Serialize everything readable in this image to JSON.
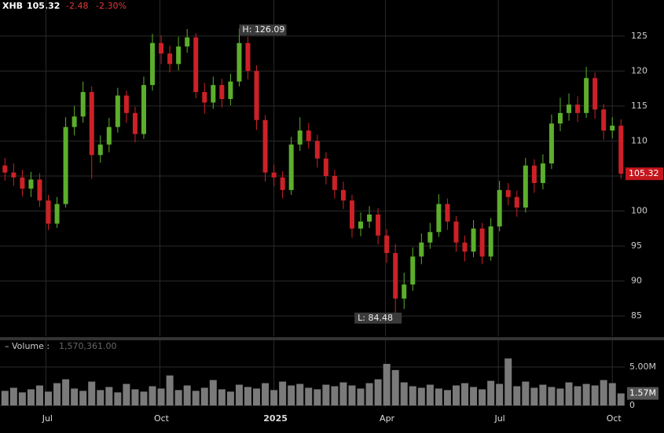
{
  "header": {
    "symbol": "XHB",
    "change": "-2.48",
    "change_pct": "-2.30%"
  },
  "chart_data": {
    "type": "candlestick",
    "x": [
      4,
      11,
      18,
      25,
      32,
      39,
      46,
      53,
      60,
      67,
      74,
      81,
      88,
      95,
      102,
      109,
      116,
      123,
      130,
      137,
      144,
      151,
      158,
      165,
      172,
      179,
      186,
      193,
      200,
      207,
      214,
      221,
      228,
      235,
      242,
      249,
      256,
      263,
      270,
      277,
      284,
      291,
      298,
      305,
      312,
      319,
      326,
      333,
      340,
      347,
      354,
      361,
      368,
      375,
      382,
      389,
      396,
      403,
      410,
      417,
      424,
      431,
      438,
      445,
      452,
      459,
      466,
      473,
      480,
      487,
      494,
      501
    ],
    "xlim": [
      0,
      504
    ],
    "xticks": [
      {
        "value": 37,
        "label": "Jul"
      },
      {
        "value": 129,
        "label": "Oct"
      },
      {
        "value": 221,
        "label": "2025"
      },
      {
        "value": 311,
        "label": "Apr"
      },
      {
        "value": 402,
        "label": "Jul"
      },
      {
        "value": 494,
        "label": "Oct"
      }
    ],
    "open": [
      106.5,
      105.5,
      104.8,
      103.2,
      104.5,
      101.5,
      98.2,
      101,
      112,
      113.5,
      117,
      108,
      109.5,
      112,
      116.5,
      114,
      111,
      118,
      124,
      122.5,
      121,
      123.5,
      124.8,
      117,
      115.5,
      118,
      116,
      118.5,
      124,
      120,
      113,
      105.5,
      104.8,
      103,
      109.5,
      111.5,
      110,
      107.5,
      105,
      103,
      101.5,
      97.5,
      98.5,
      99.5,
      96.5,
      94,
      87.5,
      89.5,
      93.5,
      95.5,
      97,
      101,
      98.5,
      95.5,
      94.2,
      97.5,
      93.5,
      97.8,
      103,
      102,
      100.5,
      106.5,
      104,
      106.8,
      112.5,
      114,
      115.2,
      114,
      119,
      114.5,
      111.5,
      112.2
    ],
    "high": [
      107.6,
      106.8,
      105.9,
      105.6,
      105.4,
      102.3,
      102.0,
      113.4,
      115.0,
      118.5,
      117.8,
      110.8,
      113.3,
      117.6,
      117.2,
      114.9,
      119.2,
      125.3,
      125.1,
      123.6,
      124.9,
      126.0,
      125.4,
      118.3,
      119.2,
      118.9,
      119.6,
      126.09,
      124.9,
      120.8,
      113.7,
      106.6,
      105.7,
      110.6,
      113.4,
      112.6,
      110.9,
      108.4,
      105.9,
      104.2,
      102.3,
      99.8,
      100.7,
      100.4,
      97.4,
      95.3,
      91.2,
      94.8,
      96.8,
      98.3,
      102.4,
      101.8,
      99.3,
      96.5,
      98.7,
      98.3,
      99.0,
      104.3,
      104.0,
      102.9,
      107.6,
      107.4,
      108.1,
      113.8,
      116.2,
      116.8,
      116.4,
      120.6,
      119.8,
      115.3,
      113.4,
      113.1
    ],
    "low": [
      104.3,
      103.6,
      102.1,
      102.0,
      100.6,
      97.3,
      97.6,
      100.5,
      110.8,
      112.6,
      104.6,
      106.9,
      108.4,
      111.2,
      112.6,
      109.8,
      110.3,
      117.2,
      121.0,
      119.8,
      120.1,
      122.6,
      116.1,
      113.9,
      114.6,
      114.8,
      115.1,
      117.8,
      118.8,
      111.6,
      104.2,
      103.5,
      101.8,
      102.3,
      108.6,
      108.9,
      106.2,
      103.8,
      101.8,
      100.3,
      96.2,
      96.4,
      97.6,
      95.2,
      92.6,
      84.48,
      86.0,
      88.6,
      92.4,
      94.6,
      96.3,
      97.3,
      94.2,
      92.8,
      93.4,
      92.4,
      92.9,
      97.1,
      100.8,
      99.2,
      99.8,
      102.6,
      103.1,
      106.0,
      111.4,
      112.9,
      112.7,
      113.3,
      113.2,
      110.2,
      110.4,
      104.6
    ],
    "close": [
      105.5,
      104.8,
      103.2,
      104.5,
      101.5,
      98.2,
      101,
      112,
      113.5,
      117,
      108,
      109.5,
      112,
      116.5,
      114,
      111,
      118,
      124,
      122.5,
      121,
      123.5,
      124.8,
      117,
      115.5,
      118,
      116,
      118.5,
      124,
      120,
      113,
      105.5,
      104.8,
      103,
      109.5,
      111.5,
      110,
      107.5,
      105,
      103,
      101.5,
      97.5,
      98.5,
      99.5,
      96.5,
      94,
      87.5,
      89.5,
      93.5,
      95.5,
      97,
      101,
      98.5,
      95.5,
      94.2,
      97.5,
      93.5,
      97.8,
      103,
      102,
      100.5,
      106.5,
      104,
      106.8,
      112.5,
      114,
      115.2,
      114,
      119,
      114.5,
      111.5,
      112.2,
      105.32
    ],
    "up_color": "#5cae2c",
    "down_color": "#cc2127",
    "ylim": [
      82.1,
      127.9
    ],
    "yticks": [
      85,
      90,
      95,
      100,
      105,
      110,
      115,
      120,
      125
    ],
    "grid": true,
    "annotations": [
      "H: 126.09",
      "L: 84.48"
    ],
    "volume": {
      "title": "– Volume :",
      "readout": "1,570,361.00",
      "last_label": "1.57M",
      "color": "#7a7a7a",
      "values": [
        1900000,
        2300000,
        1700000,
        2100000,
        2600000,
        1800000,
        2900000,
        3400000,
        2200000,
        1900000,
        3100000,
        2000000,
        2400000,
        1700000,
        2800000,
        2100000,
        1800000,
        2500000,
        2200000,
        3900000,
        2000000,
        2600000,
        1900000,
        2300000,
        3300000,
        2100000,
        1800000,
        2700000,
        2400000,
        2200000,
        2900000,
        2000000,
        3100000,
        2600000,
        2800000,
        2300000,
        2100000,
        2700000,
        2500000,
        3000000,
        2600000,
        2200000,
        2900000,
        3400000,
        5400000,
        4600000,
        3000000,
        2500000,
        2300000,
        2700000,
        2200000,
        2000000,
        2600000,
        2900000,
        2400000,
        2100000,
        3200000,
        2800000,
        6100000,
        2500000,
        3100000,
        2300000,
        2700000,
        2400000,
        2200000,
        3000000,
        2500000,
        2800000,
        2600000,
        3300000,
        2900000,
        1570361
      ],
      "ylim": [
        0,
        6730000
      ],
      "yticks": [
        0,
        {
          "value": 5000000,
          "label": "5.00M"
        }
      ]
    }
  }
}
